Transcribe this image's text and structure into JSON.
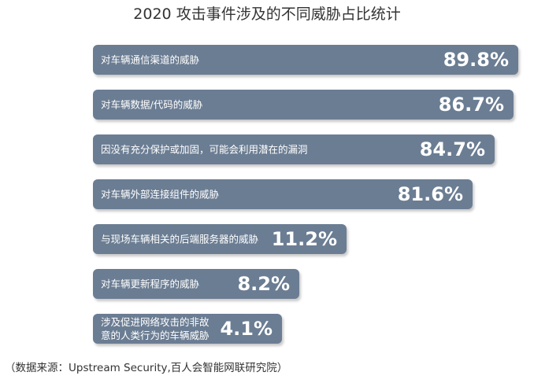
{
  "chart_data": {
    "type": "bar",
    "orientation": "horizontal",
    "title": "2020 攻击事件涉及的不同威胁占比统计",
    "categories": [
      "对车辆通信渠道的威胁",
      "对车辆数据/代码的威胁",
      "因没有充分保护或加固，可能会利用潜在的漏洞",
      "对车辆外部连接组件的威胁",
      "与现场车辆相关的后端服务器的威胁",
      "对车辆更新程序的威胁",
      "涉及促进网络攻击的非故\n意的人类行为的车辆威胁"
    ],
    "values": [
      89.8,
      86.7,
      84.7,
      81.6,
      11.2,
      8.2,
      4.1
    ],
    "value_labels": [
      "89.8%",
      "86.7%",
      "84.7%",
      "81.6%",
      "11.2%",
      "8.2%",
      "4.1%"
    ],
    "bar_color": "#6b7d93",
    "label_color": "#ffffff"
  },
  "source_note": "（数据来源：Upstream Security,百人会智能网联研究院）"
}
